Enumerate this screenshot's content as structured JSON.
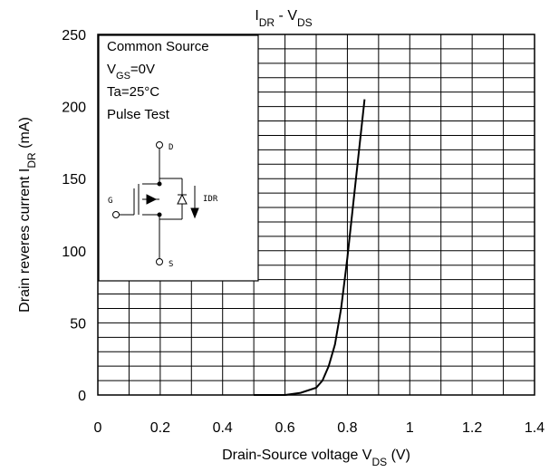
{
  "chart_data": {
    "type": "line",
    "title": {
      "main": "I",
      "sub": "DR",
      "mid": " - V",
      "sub2": "DS"
    },
    "xlabel": {
      "main": "Drain-Source voltage V",
      "sub": "DS",
      "tail": " (V)"
    },
    "ylabel": {
      "main": "Drain reveres current I",
      "sub": "DR",
      "tail": " (mA)"
    },
    "xlim": [
      0,
      1.4
    ],
    "ylim": [
      0,
      250
    ],
    "x_ticks": [
      "0",
      "0.2",
      "0.4",
      "0.6",
      "0.8",
      "1",
      "1.2",
      "1.4"
    ],
    "y_ticks": [
      "0",
      "50",
      "100",
      "150",
      "200",
      "250"
    ],
    "grid": true,
    "series": [
      {
        "x": [
          0.5,
          0.6,
          0.65,
          0.7,
          0.72,
          0.74,
          0.76,
          0.78,
          0.8,
          0.82,
          0.84,
          0.855
        ],
        "y": [
          0,
          0,
          1.5,
          5,
          10,
          20,
          35,
          60,
          95,
          135,
          175,
          205
        ]
      }
    ],
    "conditions": {
      "line1": "Common Source",
      "line2": {
        "main": "V",
        "sub": "GS",
        "tail": "=0V"
      },
      "line3": "Ta=25°C",
      "line4": "Pulse Test"
    },
    "circuit_labels": {
      "drain": "D",
      "gate": "G",
      "source": "S",
      "current": "IDR"
    }
  },
  "colors": {
    "line": "#000000",
    "grid": "#000000",
    "background": "#ffffff"
  }
}
